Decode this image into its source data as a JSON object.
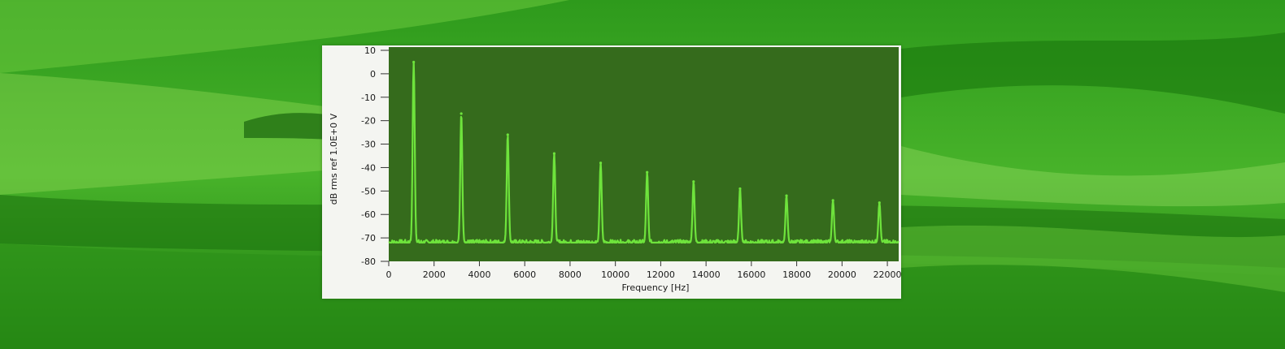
{
  "colors": {
    "bg_dark": "#1f7d12",
    "bg_mid": "#39a51f",
    "bg_light": "#7fd24a",
    "panel": "#f4f5f1",
    "plot_bg": "#356b1c",
    "trace": "#6ee33c"
  },
  "chart_data": {
    "type": "line",
    "title": "",
    "xlabel": "Frequency [Hz]",
    "ylabel": "dB rms ref 1.0E+0 V",
    "xlim": [
      0,
      22500
    ],
    "ylim": [
      -80,
      10
    ],
    "xticks": [
      "0",
      "2000",
      "4000",
      "6000",
      "8000",
      "10000",
      "12000",
      "14000",
      "16000",
      "18000",
      "20000",
      "22000"
    ],
    "yticks": [
      "10",
      "0",
      "-10",
      "-20",
      "-30",
      "-40",
      "-50",
      "-60",
      "-70",
      "-80"
    ],
    "noise_floor_db": -72,
    "series": [
      {
        "name": "",
        "x": [
          1100,
          3200,
          5250,
          7300,
          9350,
          11400,
          13450,
          15500,
          17550,
          19600,
          21650
        ],
        "values": [
          5,
          -17,
          -26,
          -34,
          -38,
          -42,
          -46,
          -49,
          -52,
          -54,
          -55
        ]
      }
    ],
    "grid": false
  }
}
